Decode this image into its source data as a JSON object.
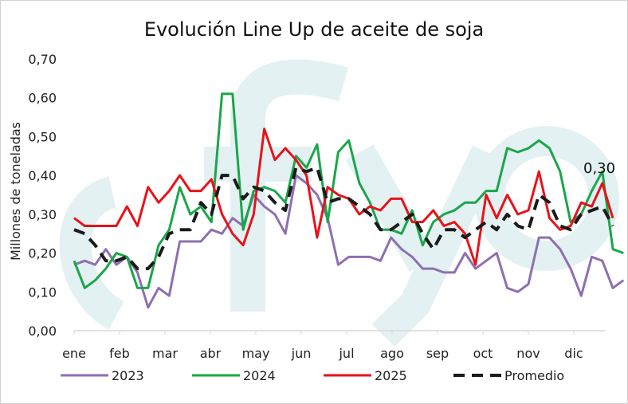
{
  "chart_data": {
    "type": "line",
    "title": "Evolución Line Up de aceite de soja",
    "ylabel": "Millones de toneladas",
    "xlabel": "",
    "ylim": [
      0,
      0.7
    ],
    "yticks": [
      0.0,
      0.1,
      0.2,
      0.3,
      0.4,
      0.5,
      0.6,
      0.7
    ],
    "ytick_labels": [
      "0,00",
      "0,10",
      "0,20",
      "0,30",
      "0,40",
      "0,50",
      "0,60",
      "0,70"
    ],
    "xticks": [
      "ene",
      "feb",
      "mar",
      "abr",
      "may",
      "jun",
      "jul",
      "ago",
      "sep",
      "oct",
      "nov",
      "dic"
    ],
    "x_points_per_month": 4.3,
    "grid": false,
    "legend_position": "bottom",
    "watermark": "sfyo",
    "annotation": "0,30",
    "series": [
      {
        "name": "2023",
        "color": "#8e6fb0",
        "dash": "solid",
        "values": [
          0.17,
          0.18,
          0.17,
          0.21,
          0.17,
          0.19,
          0.15,
          0.06,
          0.11,
          0.09,
          0.23,
          0.23,
          0.23,
          0.26,
          0.25,
          0.29,
          0.27,
          0.35,
          0.32,
          0.3,
          0.25,
          0.4,
          0.38,
          0.35,
          0.29,
          0.17,
          0.19,
          0.19,
          0.19,
          0.18,
          0.24,
          0.21,
          0.19,
          0.16,
          0.16,
          0.15,
          0.15,
          0.2,
          0.16,
          0.18,
          0.2,
          0.11,
          0.1,
          0.12,
          0.24,
          0.24,
          0.21,
          0.16,
          0.09,
          0.19,
          0.18,
          0.11,
          0.13
        ]
      },
      {
        "name": "2024",
        "color": "#1aa64a",
        "dash": "solid",
        "values": [
          0.18,
          0.11,
          0.13,
          0.16,
          0.2,
          0.19,
          0.11,
          0.11,
          0.22,
          0.26,
          0.37,
          0.3,
          0.32,
          0.28,
          0.61,
          0.61,
          0.26,
          0.36,
          0.37,
          0.36,
          0.33,
          0.45,
          0.42,
          0.48,
          0.28,
          0.46,
          0.49,
          0.38,
          0.33,
          0.26,
          0.26,
          0.25,
          0.31,
          0.22,
          0.28,
          0.3,
          0.31,
          0.33,
          0.33,
          0.36,
          0.36,
          0.47,
          0.46,
          0.47,
          0.49,
          0.47,
          0.41,
          0.28,
          0.3,
          0.36,
          0.41,
          0.21,
          0.2
        ]
      },
      {
        "name": "2025",
        "color": "#e8121a",
        "dash": "solid",
        "values": [
          0.29,
          0.27,
          0.27,
          0.27,
          0.27,
          0.32,
          0.27,
          0.37,
          0.33,
          0.36,
          0.4,
          0.36,
          0.36,
          0.39,
          0.3,
          0.25,
          0.22,
          0.3,
          0.52,
          0.44,
          0.47,
          0.44,
          0.4,
          0.24,
          0.37,
          0.35,
          0.34,
          0.3,
          0.32,
          0.31,
          0.34,
          0.34,
          0.28,
          0.28,
          0.31,
          0.27,
          0.28,
          0.25,
          0.17,
          0.35,
          0.29,
          0.35,
          0.3,
          0.31,
          0.41,
          0.29,
          0.26,
          0.27,
          0.33,
          0.32,
          0.38,
          0.29
        ]
      },
      {
        "name": "Promedio",
        "color": "#1a1a1a",
        "dash": "dashed",
        "values": [
          0.26,
          0.25,
          0.22,
          0.18,
          0.18,
          0.19,
          0.16,
          0.16,
          0.19,
          0.25,
          0.26,
          0.26,
          0.33,
          0.3,
          0.4,
          0.4,
          0.34,
          0.37,
          0.36,
          0.33,
          0.31,
          0.42,
          0.41,
          0.42,
          0.33,
          0.34,
          0.34,
          0.32,
          0.3,
          0.26,
          0.26,
          0.28,
          0.3,
          0.25,
          0.21,
          0.26,
          0.26,
          0.24,
          0.26,
          0.28,
          0.26,
          0.3,
          0.27,
          0.26,
          0.35,
          0.33,
          0.27,
          0.26,
          0.3,
          0.31,
          0.32,
          0.27
        ]
      }
    ]
  }
}
